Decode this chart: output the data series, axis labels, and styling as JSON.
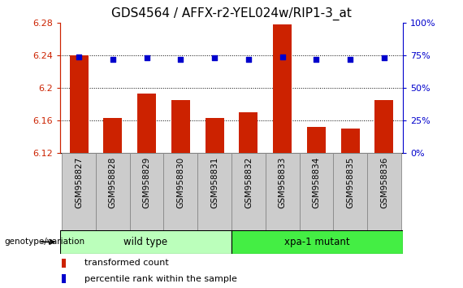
{
  "title": "GDS4564 / AFFX-r2-YEL024w/RIP1-3_at",
  "samples": [
    "GSM958827",
    "GSM958828",
    "GSM958829",
    "GSM958830",
    "GSM958831",
    "GSM958832",
    "GSM958833",
    "GSM958834",
    "GSM958835",
    "GSM958836"
  ],
  "transformed_count": [
    6.24,
    6.163,
    6.193,
    6.185,
    6.163,
    6.17,
    6.278,
    6.152,
    6.15,
    6.185
  ],
  "percentile_rank": [
    74,
    72,
    73,
    72,
    73,
    72,
    74,
    72,
    72,
    73
  ],
  "ylim_left": [
    6.12,
    6.28
  ],
  "ylim_right": [
    0,
    100
  ],
  "yticks_left": [
    6.12,
    6.16,
    6.2,
    6.24,
    6.28
  ],
  "yticks_right": [
    0,
    25,
    50,
    75,
    100
  ],
  "yticklabels_right": [
    "0%",
    "25%",
    "50%",
    "75%",
    "100%"
  ],
  "grid_lines": [
    6.16,
    6.2,
    6.24
  ],
  "bar_color": "#CC2200",
  "dot_color": "#0000CC",
  "wild_type_label": "wild type",
  "xpa_mutant_label": "xpa-1 mutant",
  "wild_type_color": "#BBFFBB",
  "xpa_mutant_color": "#44EE44",
  "genotype_label": "genotype/variation",
  "legend_bar_label": "transformed count",
  "legend_dot_label": "percentile rank within the sample",
  "title_fontsize": 11,
  "axis_color_left": "#CC2200",
  "axis_color_right": "#0000CC",
  "bar_width": 0.55,
  "label_box_color": "#CCCCCC",
  "label_box_edge": "#888888",
  "n_wild": 5,
  "n_xpa": 5
}
